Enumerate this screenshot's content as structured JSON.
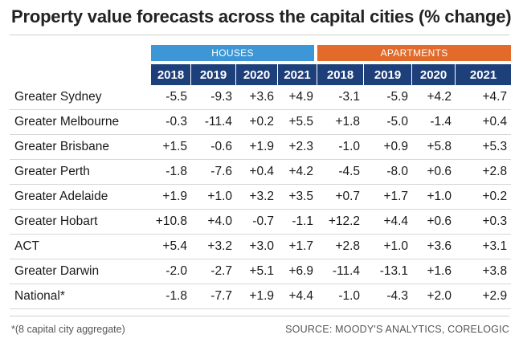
{
  "title": "Property value forecasts across the capital cities (% change)",
  "footnote": "*(8 capital city aggregate)",
  "source": "SOURCE: MOODY'S ANALYTICS, CORELOGIC",
  "colors": {
    "houses_header": "#3d97d6",
    "apartments_header": "#e26b2c",
    "year_header": "#1d3f7a"
  },
  "chart_data": {
    "type": "table",
    "groups": [
      "HOUSES",
      "APARTMENTS"
    ],
    "years": [
      "2018",
      "2019",
      "2020",
      "2021"
    ],
    "rows": [
      {
        "city": "Greater Sydney",
        "houses": [
          "-5.5",
          "-9.3",
          "+3.6",
          "+4.9"
        ],
        "apartments": [
          "-3.1",
          "-5.9",
          "+4.2",
          "+4.7"
        ]
      },
      {
        "city": "Greater Melbourne",
        "houses": [
          "-0.3",
          "-11.4",
          "+0.2",
          "+5.5"
        ],
        "apartments": [
          "+1.8",
          "-5.0",
          "-1.4",
          "+0.4"
        ]
      },
      {
        "city": "Greater Brisbane",
        "houses": [
          "+1.5",
          "-0.6",
          "+1.9",
          "+2.3"
        ],
        "apartments": [
          "-1.0",
          "+0.9",
          "+5.8",
          "+5.3"
        ]
      },
      {
        "city": "Greater Perth",
        "houses": [
          "-1.8",
          "-7.6",
          "+0.4",
          "+4.2"
        ],
        "apartments": [
          "-4.5",
          "-8.0",
          "+0.6",
          "+2.8"
        ]
      },
      {
        "city": "Greater Adelaide",
        "houses": [
          "+1.9",
          "+1.0",
          "+3.2",
          "+3.5"
        ],
        "apartments": [
          "+0.7",
          "+1.7",
          "+1.0",
          "+0.2"
        ]
      },
      {
        "city": "Greater Hobart",
        "houses": [
          "+10.8",
          "+4.0",
          "-0.7",
          "-1.1"
        ],
        "apartments": [
          "+12.2",
          "+4.4",
          "+0.6",
          "+0.3"
        ]
      },
      {
        "city": "ACT",
        "houses": [
          "+5.4",
          "+3.2",
          "+3.0",
          "+1.7"
        ],
        "apartments": [
          "+2.8",
          "+1.0",
          "+3.6",
          "+3.1"
        ]
      },
      {
        "city": "Greater Darwin",
        "houses": [
          "-2.0",
          "-2.7",
          "+5.1",
          "+6.9"
        ],
        "apartments": [
          "-11.4",
          "-13.1",
          "+1.6",
          "+3.8"
        ]
      },
      {
        "city": "National*",
        "houses": [
          "-1.8",
          "-7.7",
          "+1.9",
          "+4.4"
        ],
        "apartments": [
          "-1.0",
          "-4.3",
          "+2.0",
          "+2.9"
        ]
      }
    ]
  }
}
